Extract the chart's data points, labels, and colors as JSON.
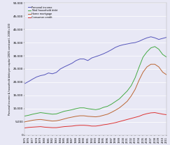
{
  "title": "",
  "ylabel": "Personal income & household debt per capita (2005 constant), 2000=100",
  "xlabel": "",
  "years": [
    1975,
    1976,
    1977,
    1978,
    1979,
    1980,
    1981,
    1982,
    1983,
    1984,
    1985,
    1986,
    1987,
    1988,
    1989,
    1990,
    1991,
    1992,
    1993,
    1994,
    1995,
    1996,
    1997,
    1998,
    1999,
    2000,
    2001,
    2002,
    2003,
    2004,
    2005,
    2006,
    2007,
    2008,
    2009,
    2010,
    2011
  ],
  "personal_income": [
    19500,
    20300,
    21200,
    22000,
    22500,
    22800,
    23500,
    23200,
    23700,
    25000,
    25800,
    26500,
    27200,
    28200,
    28800,
    28800,
    28200,
    29200,
    29700,
    30200,
    30800,
    31500,
    32300,
    33200,
    33800,
    34200,
    34500,
    34800,
    35000,
    35500,
    36200,
    36800,
    37200,
    36800,
    36200,
    36600,
    37000
  ],
  "total_household_debt": [
    7200,
    7500,
    7900,
    8200,
    8500,
    8300,
    8100,
    7900,
    8000,
    8500,
    9000,
    9300,
    9600,
    10000,
    10300,
    10300,
    10000,
    9800,
    9600,
    9900,
    10500,
    10900,
    11700,
    12700,
    13700,
    15200,
    16700,
    18700,
    21700,
    25700,
    29500,
    31500,
    33000,
    33500,
    32500,
    30500,
    29500
  ],
  "home_mortgage": [
    5000,
    5300,
    5600,
    5800,
    5900,
    5700,
    5500,
    5300,
    5400,
    5700,
    6100,
    6500,
    6800,
    7100,
    7300,
    7300,
    7100,
    7000,
    6900,
    7100,
    7500,
    7900,
    8600,
    9400,
    10300,
    11500,
    12800,
    14800,
    17300,
    20800,
    23800,
    25800,
    26800,
    26800,
    25800,
    23800,
    22800
  ],
  "consumer_credit": [
    2700,
    2900,
    3000,
    3100,
    3200,
    3000,
    2900,
    2800,
    2800,
    3000,
    3200,
    3300,
    3400,
    3600,
    3700,
    3700,
    3600,
    3400,
    3400,
    3600,
    3900,
    4100,
    4400,
    4700,
    5100,
    5500,
    5900,
    6300,
    6700,
    7100,
    7700,
    8100,
    8400,
    8500,
    8200,
    7900,
    7700
  ],
  "personal_income_color": "#5555bb",
  "total_household_debt_color": "#44aa44",
  "home_mortgage_color": "#bb6633",
  "consumer_credit_color": "#dd3333",
  "ylim": [
    0,
    50000
  ],
  "yticks": [
    0,
    5000,
    10000,
    15000,
    20000,
    25000,
    30000,
    35000,
    40000,
    45000,
    50000
  ],
  "ytick_labels": [
    "0",
    "5,000",
    "10,000",
    "15,000",
    "20,000",
    "25,000",
    "30,000",
    "35,000",
    "40,000",
    "45,000",
    "50,000"
  ],
  "legend_labels": [
    "Personal income",
    "Total household debt",
    "Home mortgage",
    "Consumer credit"
  ],
  "background_color": "#e8e8f5",
  "grid_color": "#ffffff",
  "spine_color": "#aaaaaa"
}
